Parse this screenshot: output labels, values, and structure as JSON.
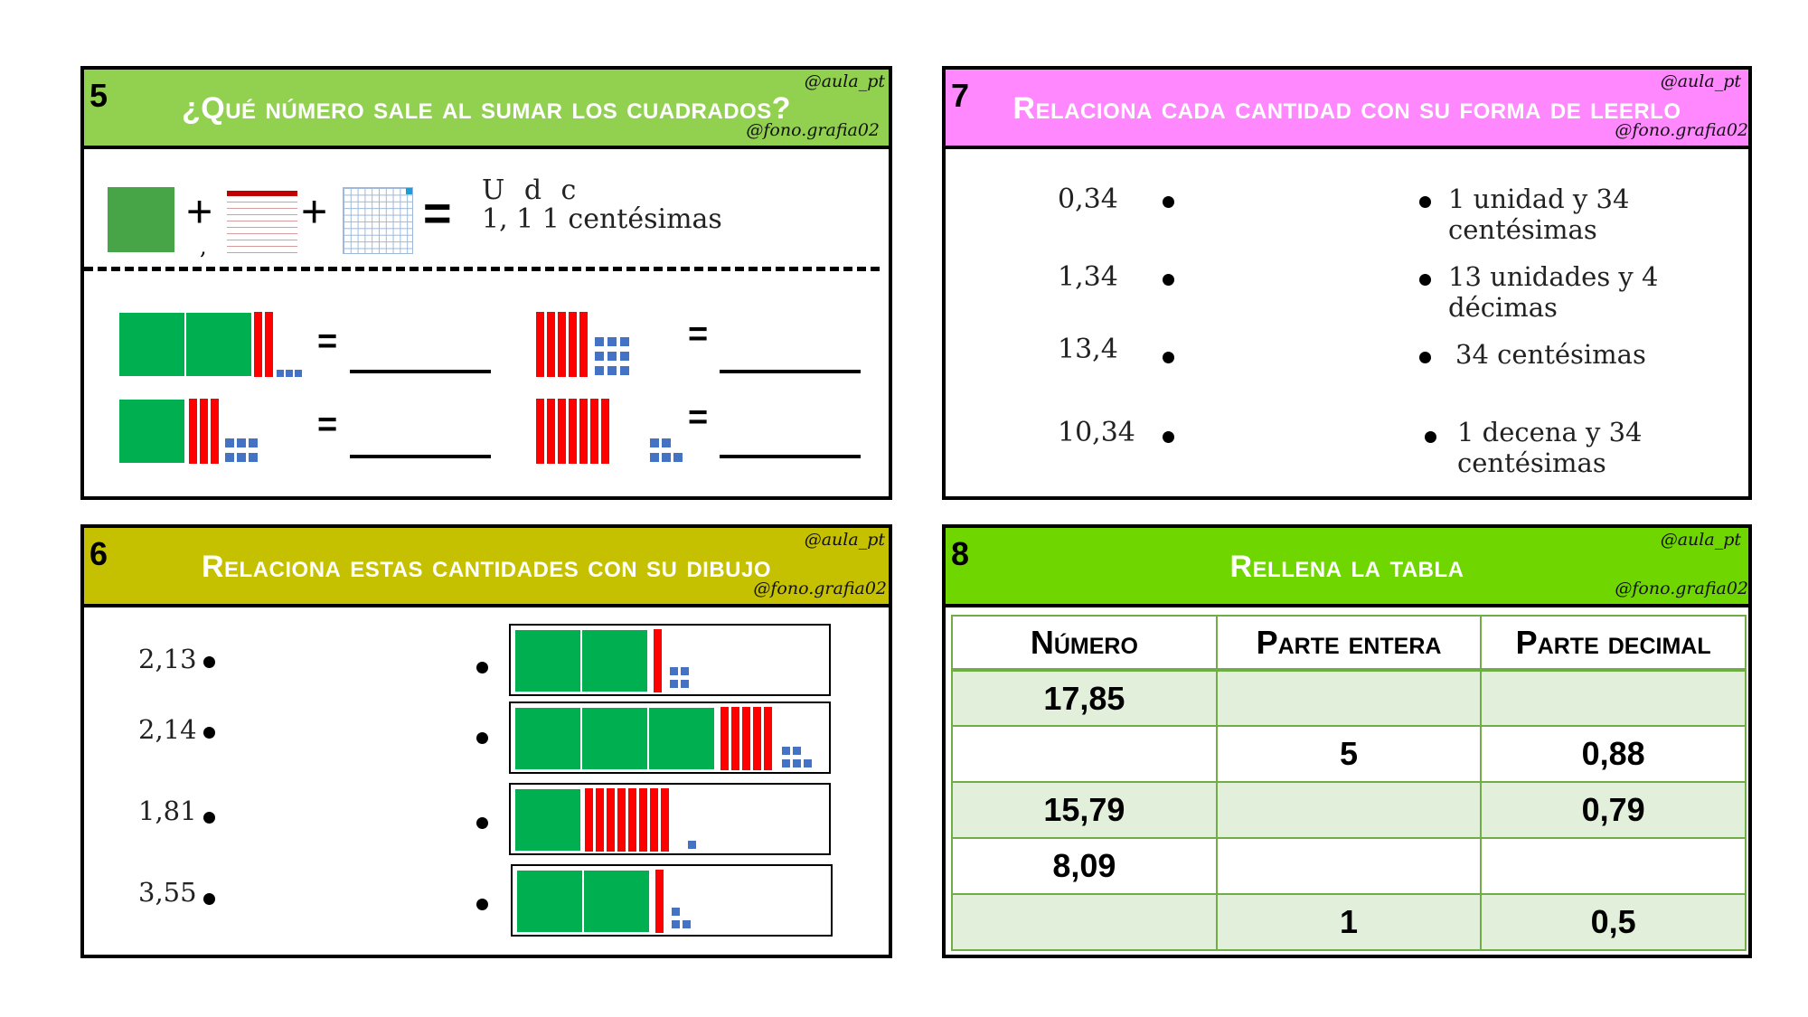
{
  "card5": {
    "num": "5",
    "title": "¿Qué número sale al sumar los cuadrados?",
    "tag_top": "@aula_pt",
    "tag_bottom": "@fono.grafia02",
    "plus": "+",
    "comma": ",",
    "equals": "=",
    "udc_header": "U d c",
    "udc_value": "1, 1 1 centésimas",
    "equals_short": "="
  },
  "card7": {
    "num": "7",
    "title": "Relaciona cada cantidad con su forma de leerlo",
    "tag_top": "@aula_pt",
    "tag_bottom": "@fono.grafia02",
    "left": [
      "0,34",
      "1,34",
      "13,4",
      "10,34"
    ],
    "right": [
      "1 unidad y 34 centésimas",
      "13 unidades y 4 décimas",
      "34 centésimas",
      "1 decena y 34 centésimas"
    ]
  },
  "card6": {
    "num": "6",
    "title": "Relaciona estas cantidades con su dibujo",
    "tag_top": "@aula_pt",
    "tag_bottom": "@fono.grafia02",
    "left": [
      "2,13",
      "2,14",
      "1,81",
      "3,55"
    ]
  },
  "card8": {
    "num": "8",
    "title": "Rellena la tabla",
    "tag_top": "@aula_pt",
    "tag_bottom": "@fono.grafia02",
    "headers": [
      "Número",
      "Parte entera",
      "Parte decimal"
    ],
    "rows": [
      [
        "17,85",
        "",
        ""
      ],
      [
        "",
        "5",
        "0,88"
      ],
      [
        "15,79",
        "",
        "0,79"
      ],
      [
        "8,09",
        "",
        ""
      ],
      [
        "",
        "1",
        "0,5"
      ]
    ]
  },
  "colors": {
    "green_block": "#00b050",
    "red_rod": "#ff0000",
    "blue_unit": "#4472c4"
  }
}
